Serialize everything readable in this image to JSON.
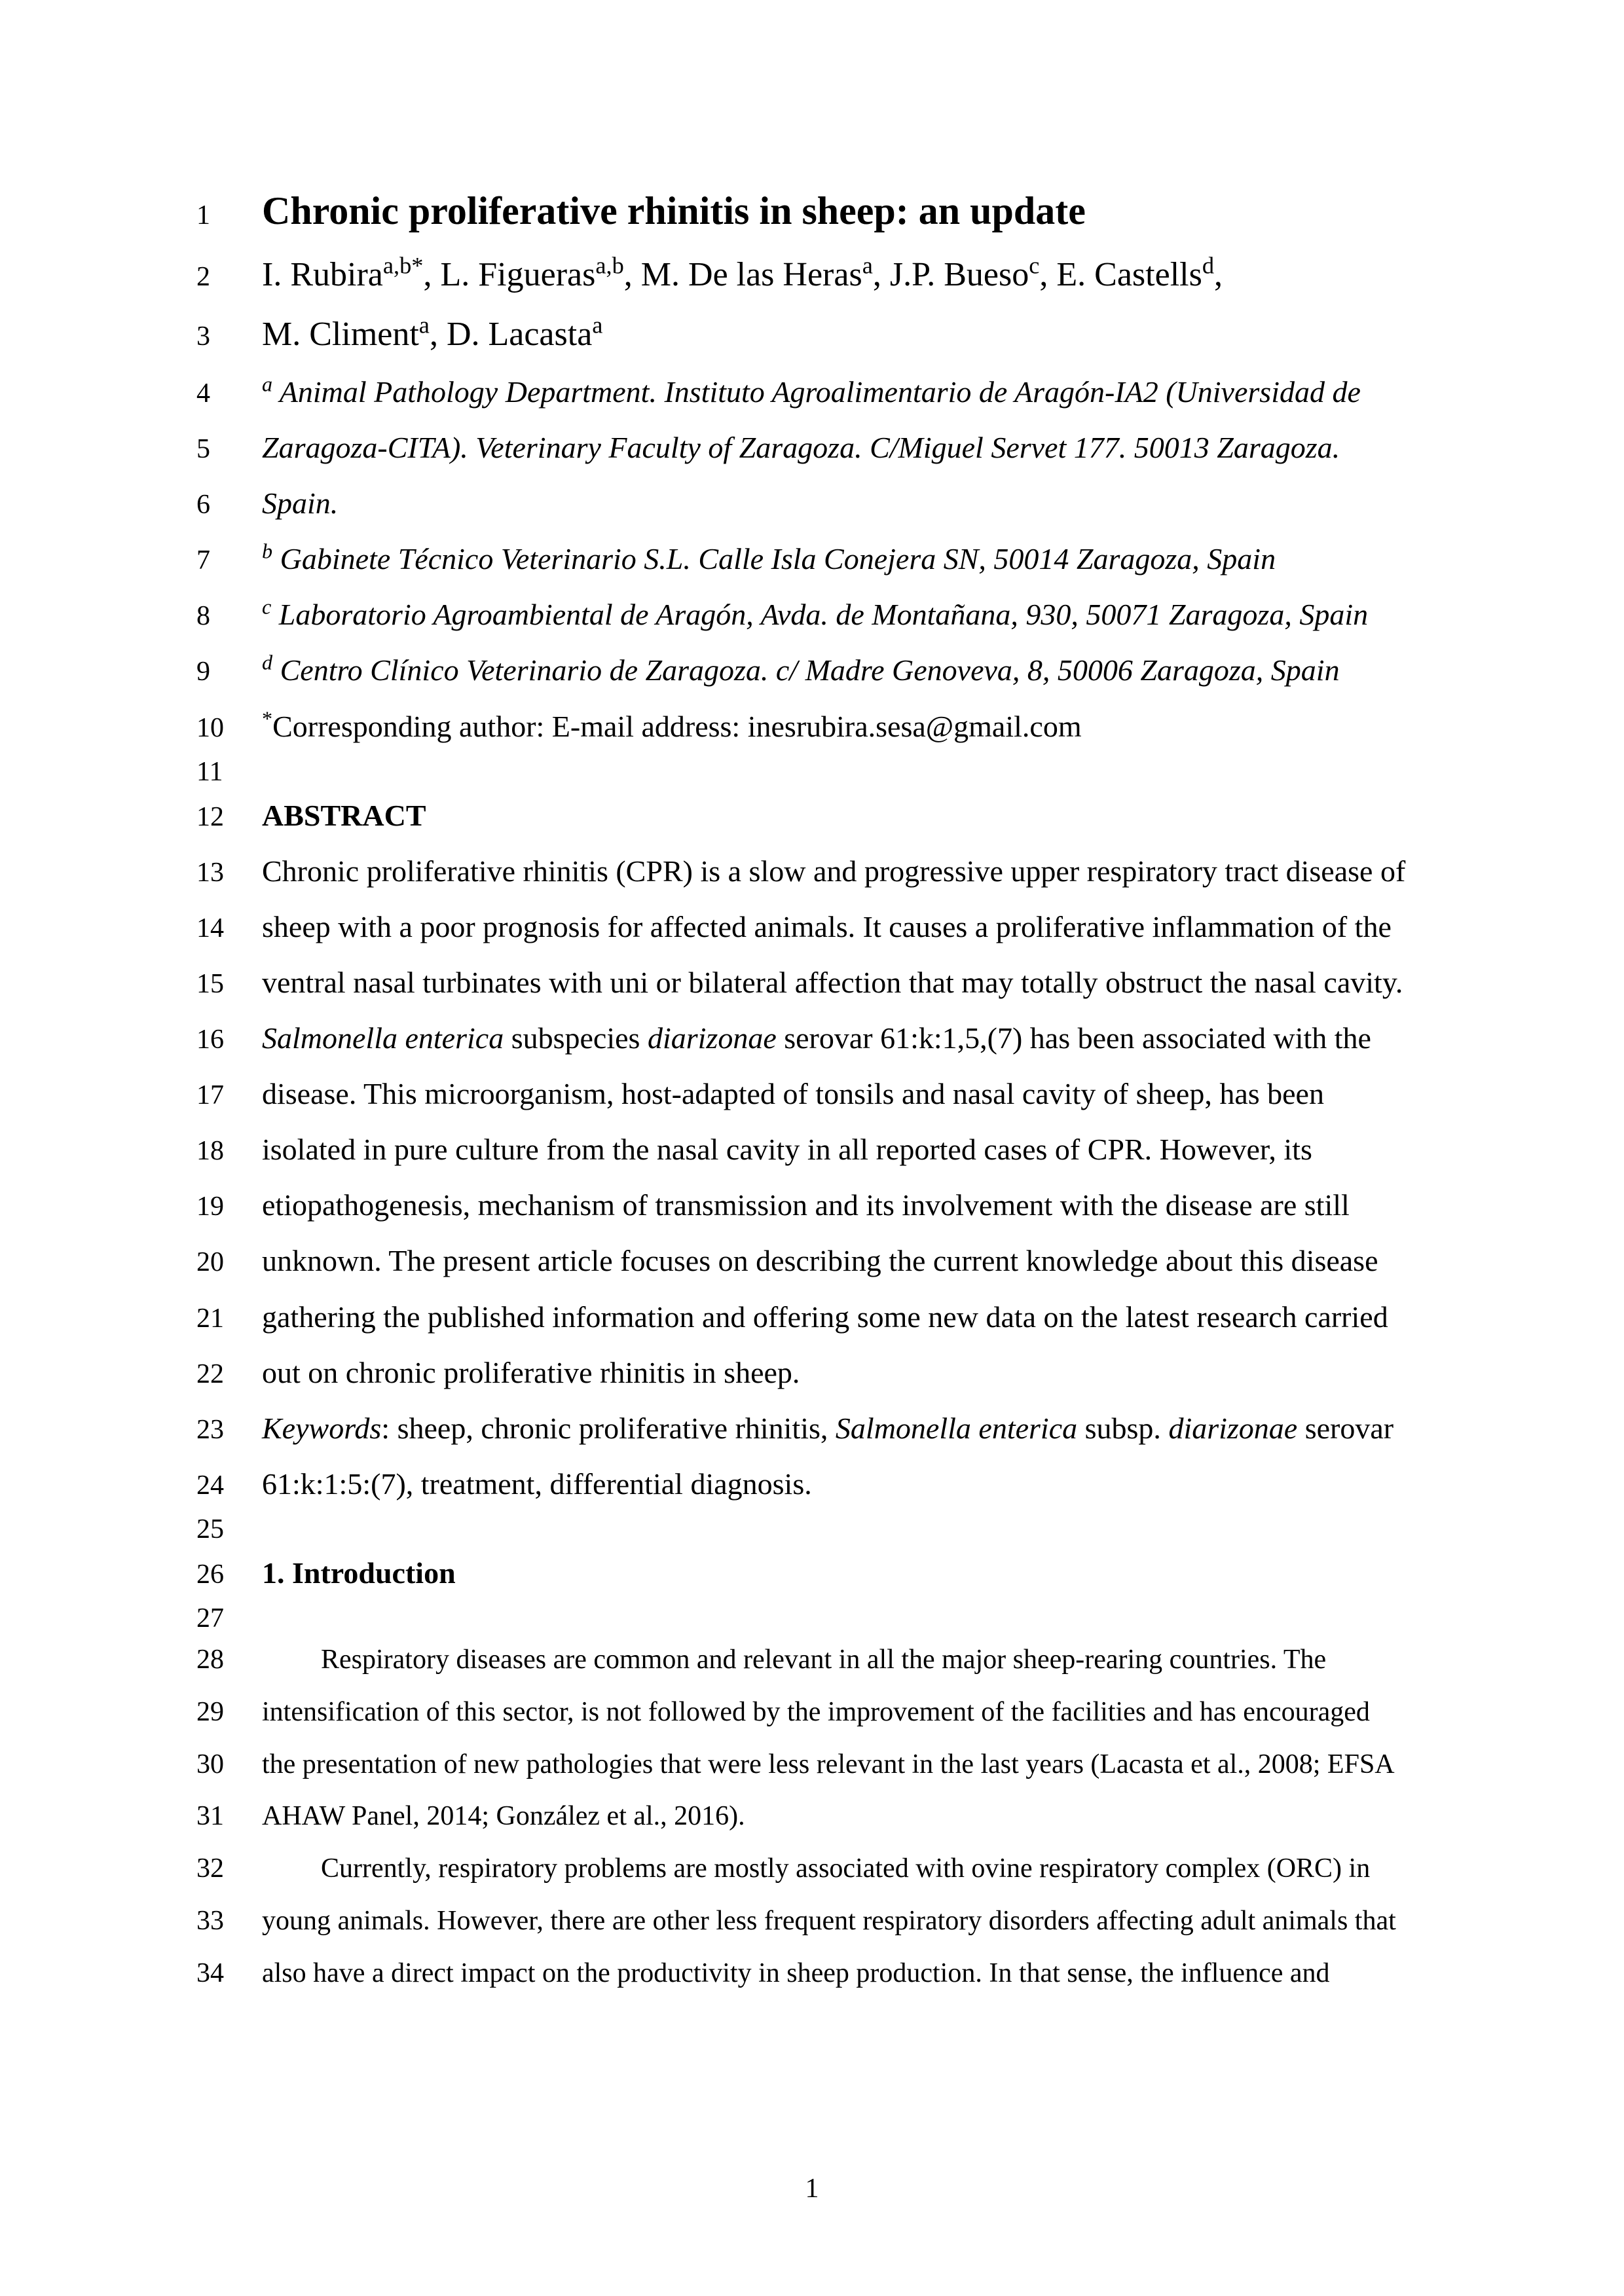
{
  "title": {
    "line": "1",
    "text": "Chronic proliferative rhinitis in sheep: an update"
  },
  "authors": [
    {
      "line": "2",
      "html": "I. Rubira<sup>a,b*</sup>, L. Figueras<sup>a,b</sup>, M. De las Heras<sup>a</sup>, J.P. Bueso<sup>c</sup>, E. Castells<sup>d</sup>,"
    },
    {
      "line": "3",
      "html": "M. Climent<sup>a</sup>, D. Lacasta<sup>a</sup>"
    }
  ],
  "affiliations": [
    {
      "line": "4",
      "html": "<sup>a</sup> Animal Pathology Department. Instituto Agroalimentario de Aragón-IA2 (Universidad de"
    },
    {
      "line": "5",
      "html": "Zaragoza-CITA). Veterinary Faculty of Zaragoza. C/Miguel Servet 177. 50013 Zaragoza."
    },
    {
      "line": "6",
      "html": "Spain."
    },
    {
      "line": "7",
      "html": "<sup>b</sup> Gabinete Técnico Veterinario S.L. Calle Isla Conejera SN, 50014 Zaragoza, Spain"
    },
    {
      "line": "8",
      "html": "<sup>c</sup> Laboratorio Agroambiental de Aragón, Avda. de Montañana, 930, 50071 Zaragoza, Spain"
    },
    {
      "line": "9",
      "html": "<sup>d</sup> Centro Clínico Veterinario de Zaragoza. c/ Madre Genoveva, 8, 50006 Zaragoza, Spain"
    }
  ],
  "corresponding": {
    "line": "10",
    "html": "<sup>*</sup>Corresponding author: E-mail address: inesrubira.sesa@gmail.com"
  },
  "empty11": {
    "line": "11"
  },
  "abstract_heading": {
    "line": "12",
    "text": "ABSTRACT"
  },
  "abstract": [
    {
      "line": "13",
      "html": "Chronic proliferative rhinitis (CPR) is a slow and progressive upper respiratory tract disease of"
    },
    {
      "line": "14",
      "html": "sheep with a poor prognosis for affected animals. It causes a proliferative inflammation of the"
    },
    {
      "line": "15",
      "html": "ventral nasal turbinates with uni or bilateral affection that may totally obstruct the nasal cavity."
    },
    {
      "line": "16",
      "html": "<span class=\"italic\">Salmonella enterica</span> subspecies <span class=\"italic\">diarizonae</span> serovar 61:k:1,5,(7) has been associated with the"
    },
    {
      "line": "17",
      "html": "disease. This microorganism, host-adapted of tonsils and nasal cavity of sheep, has been"
    },
    {
      "line": "18",
      "html": "isolated in pure culture from the nasal cavity in all reported cases of CPR. However, its"
    },
    {
      "line": "19",
      "html": "etiopathogenesis, mechanism of transmission and its involvement with the disease are still"
    },
    {
      "line": "20",
      "html": "unknown. The present article focuses on describing the current knowledge about this disease"
    },
    {
      "line": "21",
      "html": "gathering the published information and offering some new data on the latest research carried"
    },
    {
      "line": "22",
      "html": "out on chronic proliferative rhinitis in sheep."
    }
  ],
  "keywords": [
    {
      "line": "23",
      "html": "<span class=\"italic\">Keywords</span>: sheep, chronic proliferative rhinitis, <span class=\"italic\">Salmonella enterica</span> subsp. <span class=\"italic\">diarizonae</span> serovar"
    },
    {
      "line": "24",
      "html": "61:k:1:5:(7), treatment, differential diagnosis."
    }
  ],
  "empty25": {
    "line": "25"
  },
  "intro_heading": {
    "line": "26",
    "text": "1. Introduction"
  },
  "empty27": {
    "line": "27"
  },
  "body": [
    {
      "line": "28",
      "indent": true,
      "html": "Respiratory diseases are common and relevant in all the major sheep-rearing countries. The"
    },
    {
      "line": "29",
      "indent": false,
      "html": "intensification of this sector, is not followed by the improvement of the facilities and has encouraged"
    },
    {
      "line": "30",
      "indent": false,
      "html": "the presentation of new pathologies that were less relevant in the last years (Lacasta et al., 2008; EFSA"
    },
    {
      "line": "31",
      "indent": false,
      "html": "AHAW Panel, 2014; González et al., 2016)."
    },
    {
      "line": "32",
      "indent": true,
      "html": "Currently, respiratory problems are mostly associated with ovine respiratory complex (ORC) in"
    },
    {
      "line": "33",
      "indent": false,
      "html": "young animals. However, there are other less frequent respiratory disorders affecting adult animals that"
    },
    {
      "line": "34",
      "indent": false,
      "html": "also have a direct impact on the productivity in sheep production. In that sense, the influence and"
    }
  ],
  "page_number": "1",
  "colors": {
    "text": "#000000",
    "background": "#ffffff"
  },
  "typography": {
    "title_fontsize": 60,
    "author_fontsize": 52,
    "body_fontsize": 46,
    "small_body_fontsize": 42,
    "linenum_fontsize": 42,
    "font_family": "Times New Roman"
  }
}
